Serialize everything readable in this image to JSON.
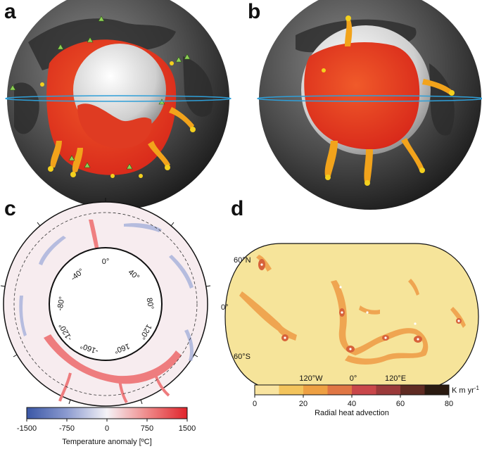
{
  "panels": {
    "a": {
      "letter": "a"
    },
    "b": {
      "letter": "b"
    },
    "c": {
      "letter": "c",
      "angle_labels": [
        "0°",
        "40°",
        "80°",
        "120°",
        "160°",
        "-160°",
        "-120°",
        "-80°",
        "-40°"
      ],
      "colorbar": {
        "ticks": [
          "-1500",
          "-750",
          "0",
          "750",
          "1500"
        ],
        "label": "Temperature anomaly [ºC]",
        "colors": [
          "#3a57a6",
          "#8c9bd0",
          "#f5f3f7",
          "#ef8a8a",
          "#e0242b"
        ]
      }
    },
    "d": {
      "letter": "d",
      "lat_labels": [
        "60°N",
        "0°",
        "60°S"
      ],
      "lon_labels": [
        "120°W",
        "0°",
        "120°E"
      ],
      "colorbar": {
        "ticks": [
          "0",
          "20",
          "40",
          "60",
          "80"
        ],
        "unit": "K m yr",
        "unit_exp": "-1",
        "label": "Radial heat advection",
        "colors": [
          "#f9e4a0",
          "#f3c45c",
          "#eea043",
          "#e07644",
          "#c9474a",
          "#9b3a3a",
          "#5f2b23",
          "#2a1a10"
        ]
      },
      "fill_color": "#f6e49a"
    }
  }
}
